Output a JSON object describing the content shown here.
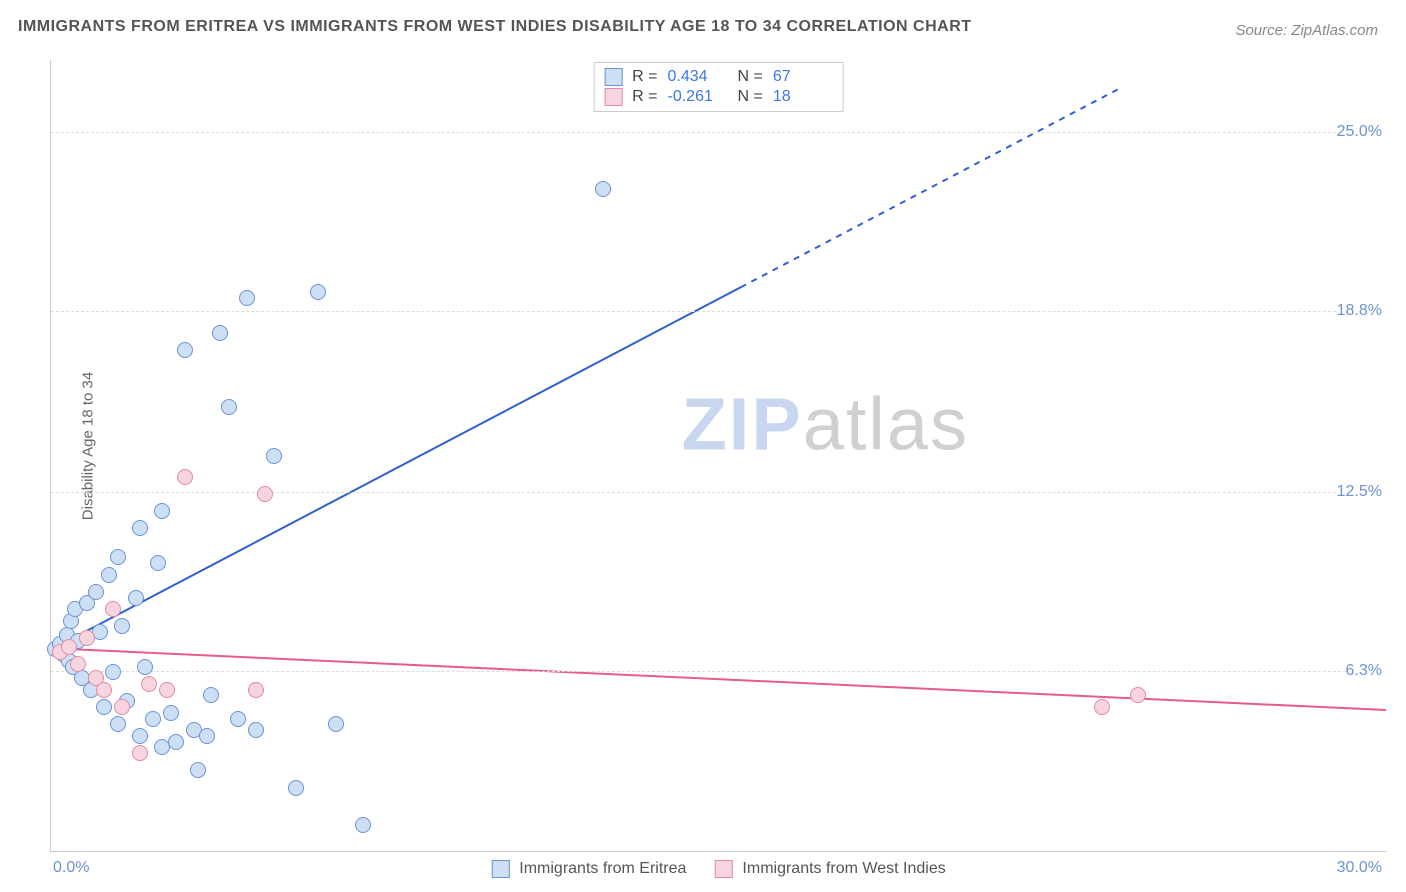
{
  "title": "IMMIGRANTS FROM ERITREA VS IMMIGRANTS FROM WEST INDIES DISABILITY AGE 18 TO 34 CORRELATION CHART",
  "source_label": "Source: ZipAtlas.com",
  "y_axis_label": "Disability Age 18 to 34",
  "watermark_a": "ZIP",
  "watermark_b": "atlas",
  "chart": {
    "type": "scatter-correlation",
    "x_range": [
      0,
      30
    ],
    "y_range": [
      0,
      27.5
    ],
    "y_ticks": [
      6.3,
      12.5,
      18.8,
      25.0
    ],
    "y_tick_labels": [
      "6.3%",
      "12.5%",
      "18.8%",
      "25.0%"
    ],
    "x_tick_left": "0.0%",
    "x_tick_right": "30.0%",
    "background_color": "#ffffff",
    "grid_color": "#dddddd",
    "axis_color": "#cccccc",
    "tick_label_color": "#6b93d6",
    "marker_radius": 8,
    "marker_stroke_width": 1,
    "trend_line_width": 2
  },
  "series": [
    {
      "name": "Immigrants from Eritrea",
      "fill": "#cddff5",
      "stroke": "#6b93d6",
      "line_color": "#2f5fd0",
      "R": "0.434",
      "N": "67",
      "trend": {
        "x1": 0,
        "y1": 7.0,
        "x2_solid": 15.5,
        "y2_solid": 19.6,
        "x2_dash": 24,
        "y2_dash": 26.5
      },
      "points": [
        [
          0.1,
          7.0
        ],
        [
          0.2,
          7.2
        ],
        [
          0.3,
          6.8
        ],
        [
          0.35,
          7.5
        ],
        [
          0.4,
          6.6
        ],
        [
          0.45,
          8.0
        ],
        [
          0.5,
          6.4
        ],
        [
          0.55,
          8.4
        ],
        [
          0.6,
          7.3
        ],
        [
          0.7,
          6.0
        ],
        [
          0.8,
          8.6
        ],
        [
          0.9,
          5.6
        ],
        [
          1.0,
          9.0
        ],
        [
          1.1,
          7.6
        ],
        [
          1.2,
          5.0
        ],
        [
          1.3,
          9.6
        ],
        [
          1.4,
          6.2
        ],
        [
          1.5,
          4.4
        ],
        [
          1.5,
          10.2
        ],
        [
          1.6,
          7.8
        ],
        [
          1.7,
          5.2
        ],
        [
          1.9,
          8.8
        ],
        [
          2.0,
          4.0
        ],
        [
          2.0,
          11.2
        ],
        [
          2.1,
          6.4
        ],
        [
          2.3,
          4.6
        ],
        [
          2.4,
          10.0
        ],
        [
          2.5,
          3.6
        ],
        [
          2.5,
          11.8
        ],
        [
          2.7,
          4.8
        ],
        [
          2.8,
          3.8
        ],
        [
          3.0,
          17.4
        ],
        [
          3.2,
          4.2
        ],
        [
          3.3,
          2.8
        ],
        [
          3.5,
          4.0
        ],
        [
          3.6,
          5.4
        ],
        [
          3.8,
          18.0
        ],
        [
          4.0,
          15.4
        ],
        [
          4.2,
          4.6
        ],
        [
          4.4,
          19.2
        ],
        [
          4.6,
          4.2
        ],
        [
          5.0,
          13.7
        ],
        [
          5.5,
          2.2
        ],
        [
          6.0,
          19.4
        ],
        [
          6.4,
          4.4
        ],
        [
          7.0,
          0.9
        ],
        [
          12.4,
          23.0
        ]
      ]
    },
    {
      "name": "Immigrants from West Indies",
      "fill": "#f7d5df",
      "stroke": "#e389a4",
      "line_color": "#e75a8d",
      "R": "-0.261",
      "N": "18",
      "trend": {
        "x1": 0,
        "y1": 7.05,
        "x2_solid": 30,
        "y2_solid": 4.9,
        "x2_dash": 30,
        "y2_dash": 4.9
      },
      "points": [
        [
          0.2,
          6.9
        ],
        [
          0.4,
          7.1
        ],
        [
          0.6,
          6.5
        ],
        [
          0.8,
          7.4
        ],
        [
          1.0,
          6.0
        ],
        [
          1.2,
          5.6
        ],
        [
          1.4,
          8.4
        ],
        [
          1.6,
          5.0
        ],
        [
          2.0,
          3.4
        ],
        [
          2.2,
          5.8
        ],
        [
          2.6,
          5.6
        ],
        [
          3.0,
          13.0
        ],
        [
          4.6,
          5.6
        ],
        [
          4.8,
          12.4
        ],
        [
          23.6,
          5.0
        ],
        [
          24.4,
          5.4
        ]
      ]
    }
  ],
  "watermark_colors": {
    "zip": "#c9d6ef",
    "atlas": "#d0d0d0"
  }
}
